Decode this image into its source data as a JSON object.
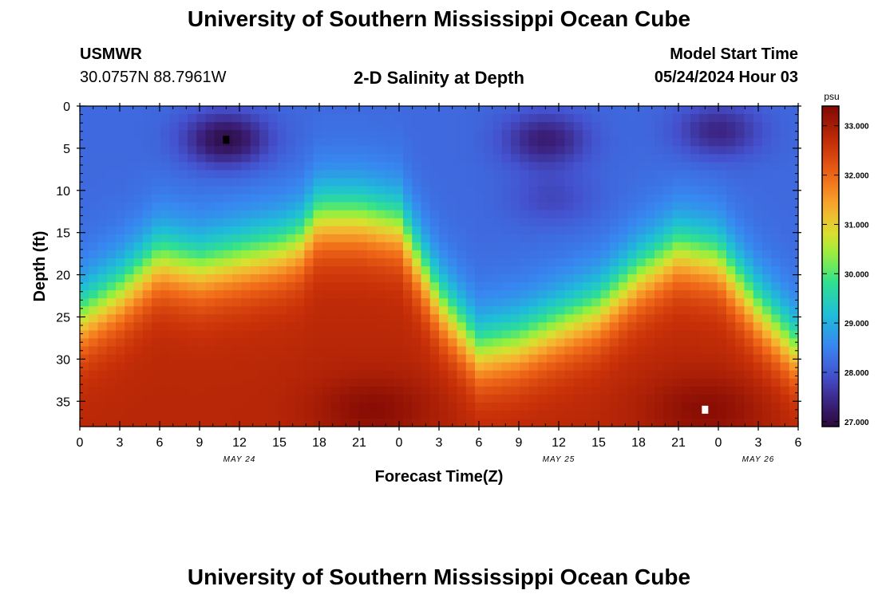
{
  "page": {
    "title_top": "University of Southern Mississippi Ocean Cube",
    "title_bottom": "University of Southern Mississippi Ocean Cube",
    "station": "USMWR",
    "coords": "30.0757N  88.7961W",
    "model_start_label": "Model Start Time",
    "model_start_value": "05/24/2024 Hour 03"
  },
  "chart_data": {
    "type": "heatmap",
    "title": "2-D Salinity at Depth",
    "xlabel": "Forecast Time(Z)",
    "ylabel": "Depth (ft)",
    "x_hours_range": [
      0,
      54
    ],
    "y_range": [
      0,
      38
    ],
    "y_ticks": [
      "0",
      "5",
      "10",
      "15",
      "20",
      "25",
      "30",
      "35"
    ],
    "y_tick_values": [
      0,
      5,
      10,
      15,
      20,
      25,
      30,
      35
    ],
    "x_tick_labels": [
      "0",
      "3",
      "6",
      "9",
      "12",
      "15",
      "18",
      "21",
      "0",
      "3",
      "6",
      "9",
      "12",
      "15",
      "18",
      "21",
      "0",
      "3",
      "6"
    ],
    "date_labels": [
      {
        "text": "MAY 24",
        "hour": 12
      },
      {
        "text": "MAY 25",
        "hour": 36
      },
      {
        "text": "MAY 26",
        "hour": 51
      }
    ],
    "colorbar": {
      "unit": "psu",
      "min": 26.9,
      "max": 33.4,
      "ticks": [
        "27.000",
        "28.000",
        "29.000",
        "30.000",
        "31.000",
        "32.000",
        "33.000"
      ],
      "tick_values": [
        27,
        28,
        29,
        30,
        31,
        32,
        33
      ]
    },
    "markers": [
      {
        "name": "min-marker",
        "hour": 11,
        "depth": 4,
        "color": "#000000"
      },
      {
        "name": "max-marker",
        "hour": 47,
        "depth": 36,
        "color": "#ffffff"
      }
    ],
    "halocline_times": [
      0,
      3,
      6,
      9,
      12,
      15,
      16.5,
      18,
      21,
      24,
      27,
      30,
      33,
      36,
      39,
      42,
      45,
      48,
      51,
      54
    ],
    "halocline_depths": [
      21,
      18,
      14,
      15,
      14,
      13,
      12,
      9,
      9,
      10,
      19,
      25,
      24,
      22,
      20,
      16,
      13,
      14,
      20,
      25
    ],
    "surface_minima": [
      {
        "hour": 11,
        "depth": 4,
        "value": 27.0
      },
      {
        "hour": 35,
        "depth": 4,
        "value": 27.3
      },
      {
        "hour": 48,
        "depth": 3,
        "value": 27.4
      },
      {
        "hour": 35.5,
        "depth": 11,
        "value": 27.8
      }
    ],
    "bottom_maxima": [
      {
        "hour": 22,
        "depth": 36,
        "value": 33.2
      },
      {
        "hour": 47,
        "depth": 36,
        "value": 33.3
      }
    ]
  }
}
